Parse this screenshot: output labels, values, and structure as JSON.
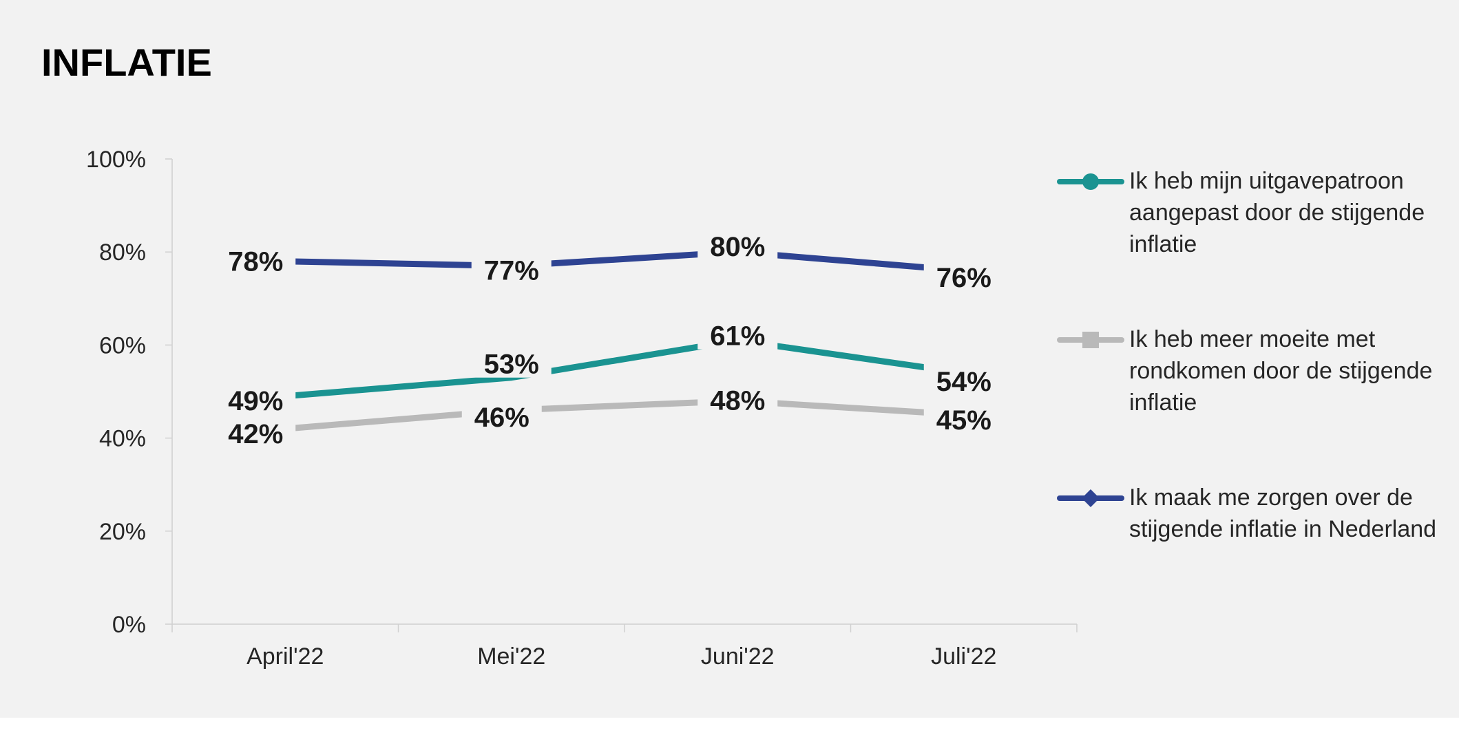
{
  "title": "INFLATIE",
  "chart_data": {
    "type": "line",
    "categories": [
      "April'22",
      "Mei'22",
      "Juni'22",
      "Juli'22"
    ],
    "series": [
      {
        "name": "Ik heb mijn uitgavepatroon aangepast door de stijgende inflatie",
        "values": [
          49,
          53,
          61,
          54
        ],
        "labels": [
          "49%",
          "53%",
          "61%",
          "54%"
        ],
        "color": "#1a9391",
        "marker": "circle"
      },
      {
        "name": "Ik heb meer moeite met rondkomen door de stijgende inflatie",
        "values": [
          42,
          46,
          48,
          45
        ],
        "labels": [
          "42%",
          "46%",
          "48%",
          "45%"
        ],
        "color": "#b9b9b9",
        "marker": "square"
      },
      {
        "name": "Ik maak me zorgen over de stijgende inflatie in Nederland",
        "values": [
          78,
          77,
          80,
          76
        ],
        "labels": [
          "78%",
          "77%",
          "80%",
          "76%"
        ],
        "color": "#2e4392",
        "marker": "diamond"
      }
    ],
    "y_ticks": [
      "0%",
      "20%",
      "40%",
      "60%",
      "80%",
      "100%"
    ],
    "ylim": [
      0,
      100
    ],
    "xlabel": "",
    "ylabel": "",
    "grid": false,
    "legend": "right"
  }
}
